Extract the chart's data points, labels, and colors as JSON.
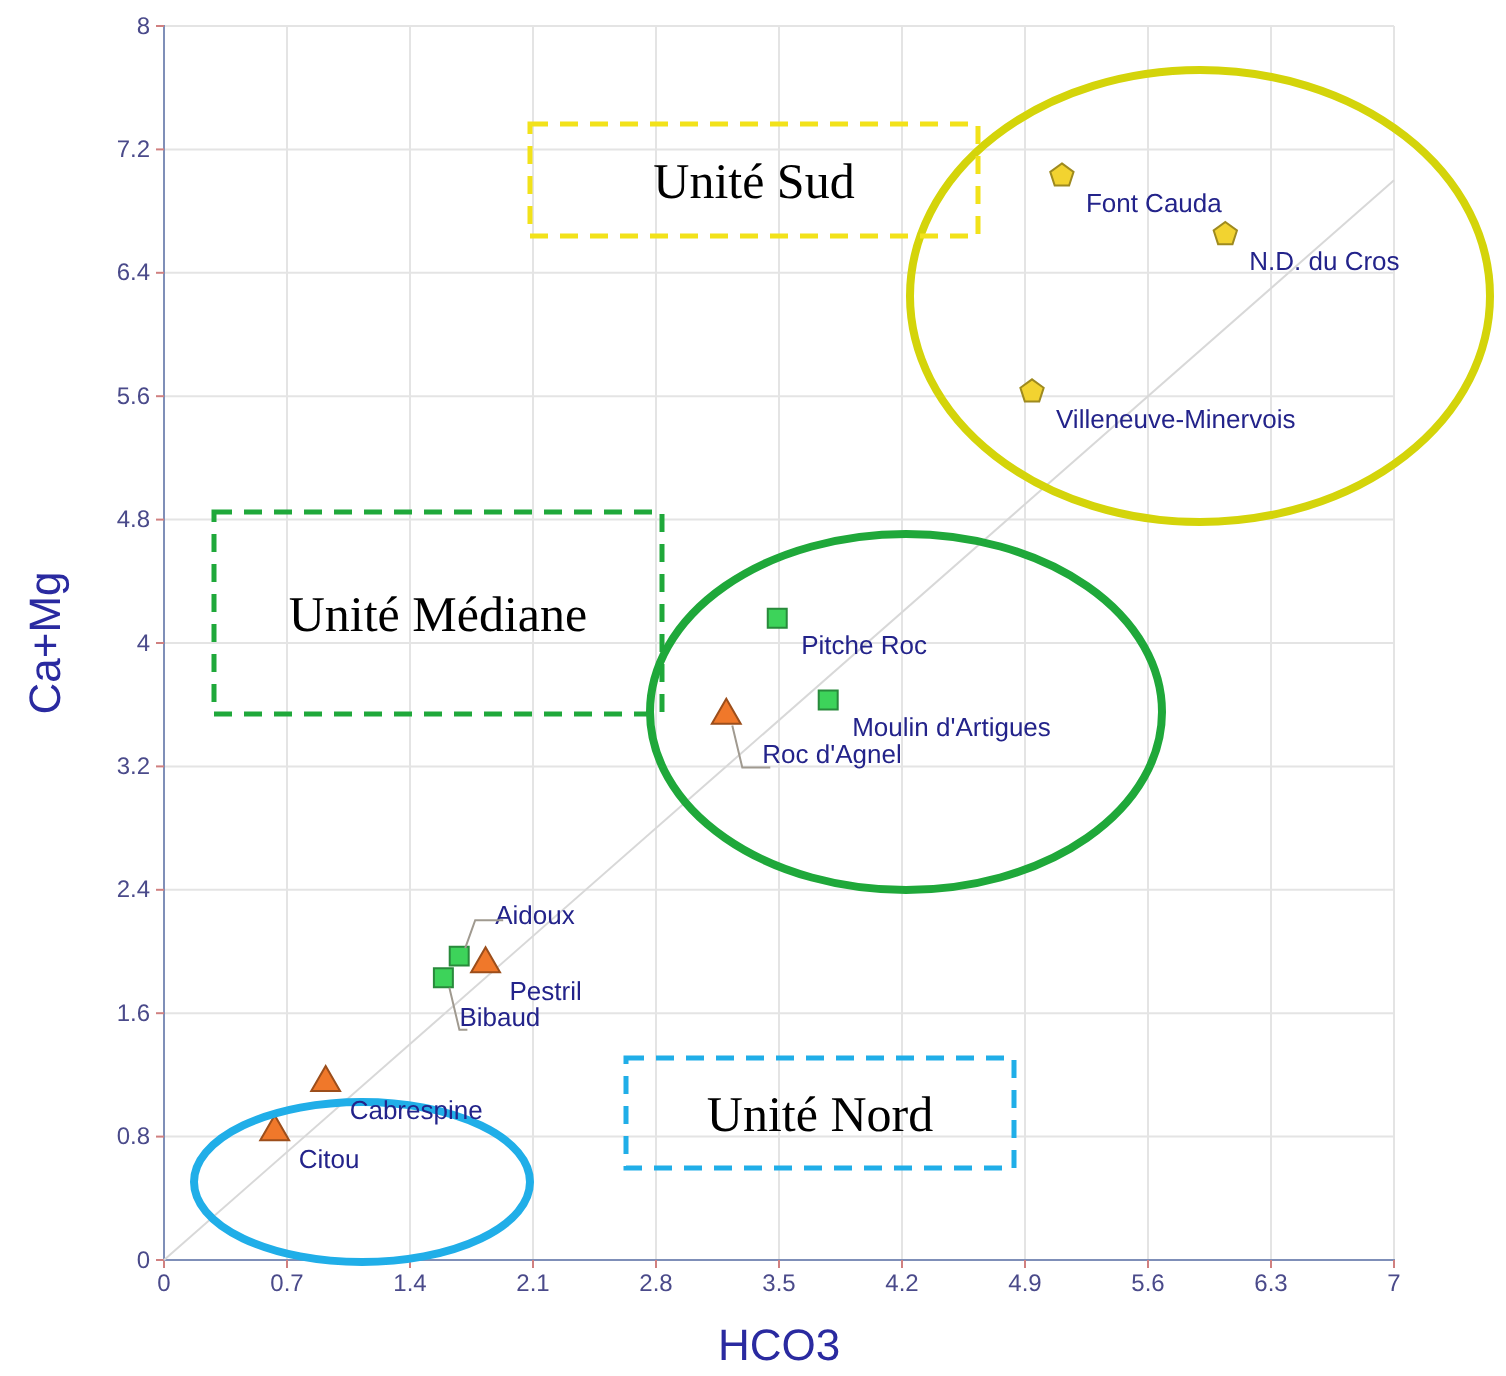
{
  "chart_data": {
    "type": "scatter",
    "xlabel": "HCO3",
    "ylabel": "Ca+Mg",
    "xlim": [
      0,
      7
    ],
    "xticks": [
      0,
      0.7,
      1.4,
      2.1,
      2.8,
      3.5,
      4.2,
      4.9,
      5.6,
      6.3,
      7
    ],
    "ylim": [
      0,
      8
    ],
    "yticks": [
      0,
      0.8,
      1.6,
      2.4,
      3.2,
      4,
      4.8,
      5.6,
      6.4,
      7.2,
      8
    ],
    "grid": true,
    "series": [
      {
        "type": "line",
        "color": "#d8d8d8",
        "x": [
          0,
          7
        ],
        "values": [
          0,
          7
        ]
      },
      {
        "color": "#f2d330",
        "x": [
          5.11,
          6.04,
          4.94
        ],
        "values": [
          7.03,
          6.65,
          5.63
        ]
      },
      {
        "color": "#3dd35a",
        "marker": "square",
        "x": [
          3.49,
          3.78,
          1.68,
          1.59
        ],
        "values": [
          4.16,
          3.63,
          1.97,
          1.83
        ]
      },
      {
        "color": "#f0782a",
        "marker": "triangle",
        "x": [
          3.2,
          1.83,
          0.92,
          0.63
        ],
        "values": [
          3.53,
          1.92,
          1.15,
          0.83
        ]
      }
    ],
    "annotations": [
      {
        "text": "Font Cauda",
        "x": 5.11,
        "y": 7.03
      },
      {
        "text": "N.D. du Cros",
        "x": 6.04,
        "y": 6.65
      },
      {
        "text": "Villeneuve-Minervois",
        "x": 4.94,
        "y": 5.63
      },
      {
        "text": "Pitche Roc",
        "x": 3.49,
        "y": 4.16
      },
      {
        "text": "Moulin d'Artigues",
        "x": 3.78,
        "y": 3.63
      },
      {
        "text": "Roc d'Agnel",
        "x": 3.2,
        "y": 3.53
      },
      {
        "text": "Aidoux",
        "x": 1.68,
        "y": 1.97
      },
      {
        "text": "Pestril",
        "x": 1.83,
        "y": 1.92
      },
      {
        "text": "Bibaud",
        "x": 1.59,
        "y": 1.83
      },
      {
        "text": "Cabrespine",
        "x": 0.92,
        "y": 1.15
      },
      {
        "text": "Citou",
        "x": 0.63,
        "y": 0.83
      },
      "Unité Sud",
      "Unité Médiane",
      "Unité Nord"
    ]
  }
}
